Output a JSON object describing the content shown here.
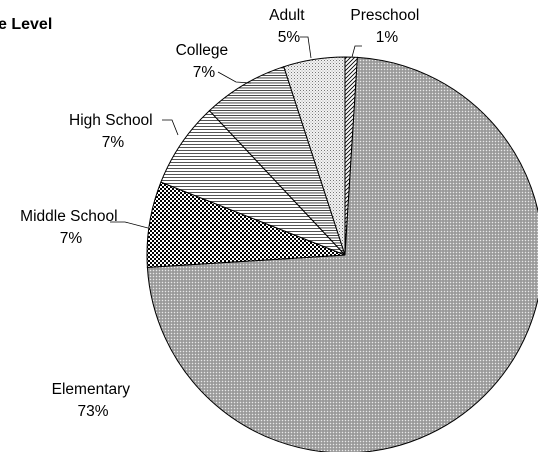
{
  "chart_data": {
    "type": "pie",
    "title": "e Level",
    "slices": [
      {
        "name": "Preschool",
        "pct_label": "1%",
        "value": 1
      },
      {
        "name": "Elementary",
        "pct_label": "73%",
        "value": 73
      },
      {
        "name": "Middle School",
        "pct_label": "7%",
        "value": 7
      },
      {
        "name": "High School",
        "pct_label": "7%",
        "value": 7
      },
      {
        "name": "College",
        "pct_label": "7%",
        "value": 7
      },
      {
        "name": "Adult",
        "pct_label": "5%",
        "value": 5
      }
    ],
    "start": "12 o'clock",
    "direction": "clockwise",
    "legend": "none",
    "fills": [
      "diagonal-hatch",
      "fine-dots",
      "checkerboard",
      "horizontal-lines",
      "horizontal-lines",
      "fine-grid"
    ]
  }
}
